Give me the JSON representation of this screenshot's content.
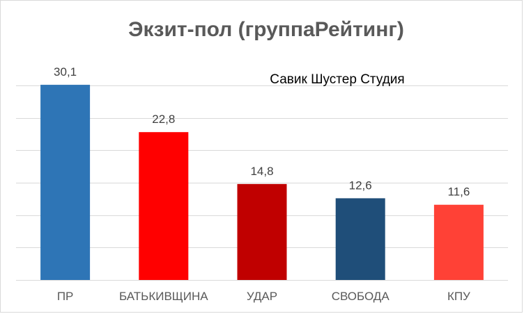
{
  "chart_data": {
    "type": "bar",
    "title": "Экзит-пол (группаРейтинг)",
    "annotation": "Савик Шустер Студия",
    "categories": [
      "ПР",
      "БАТЬКИВЩИНА",
      "УДАР",
      "СВОБОДА",
      "КПУ"
    ],
    "values": [
      30.1,
      22.8,
      14.8,
      12.6,
      11.6
    ],
    "data_labels": [
      "30,1",
      "22,8",
      "14,8",
      "12,6",
      "11,6"
    ],
    "bar_colors": [
      "#2e75b6",
      "#ff0000",
      "#c00000",
      "#1f4e79",
      "#ff4136"
    ],
    "ylim": [
      0,
      30
    ],
    "y_gridline_step": 5,
    "grid": true,
    "legend": "none",
    "xlabel": "",
    "ylabel": ""
  }
}
